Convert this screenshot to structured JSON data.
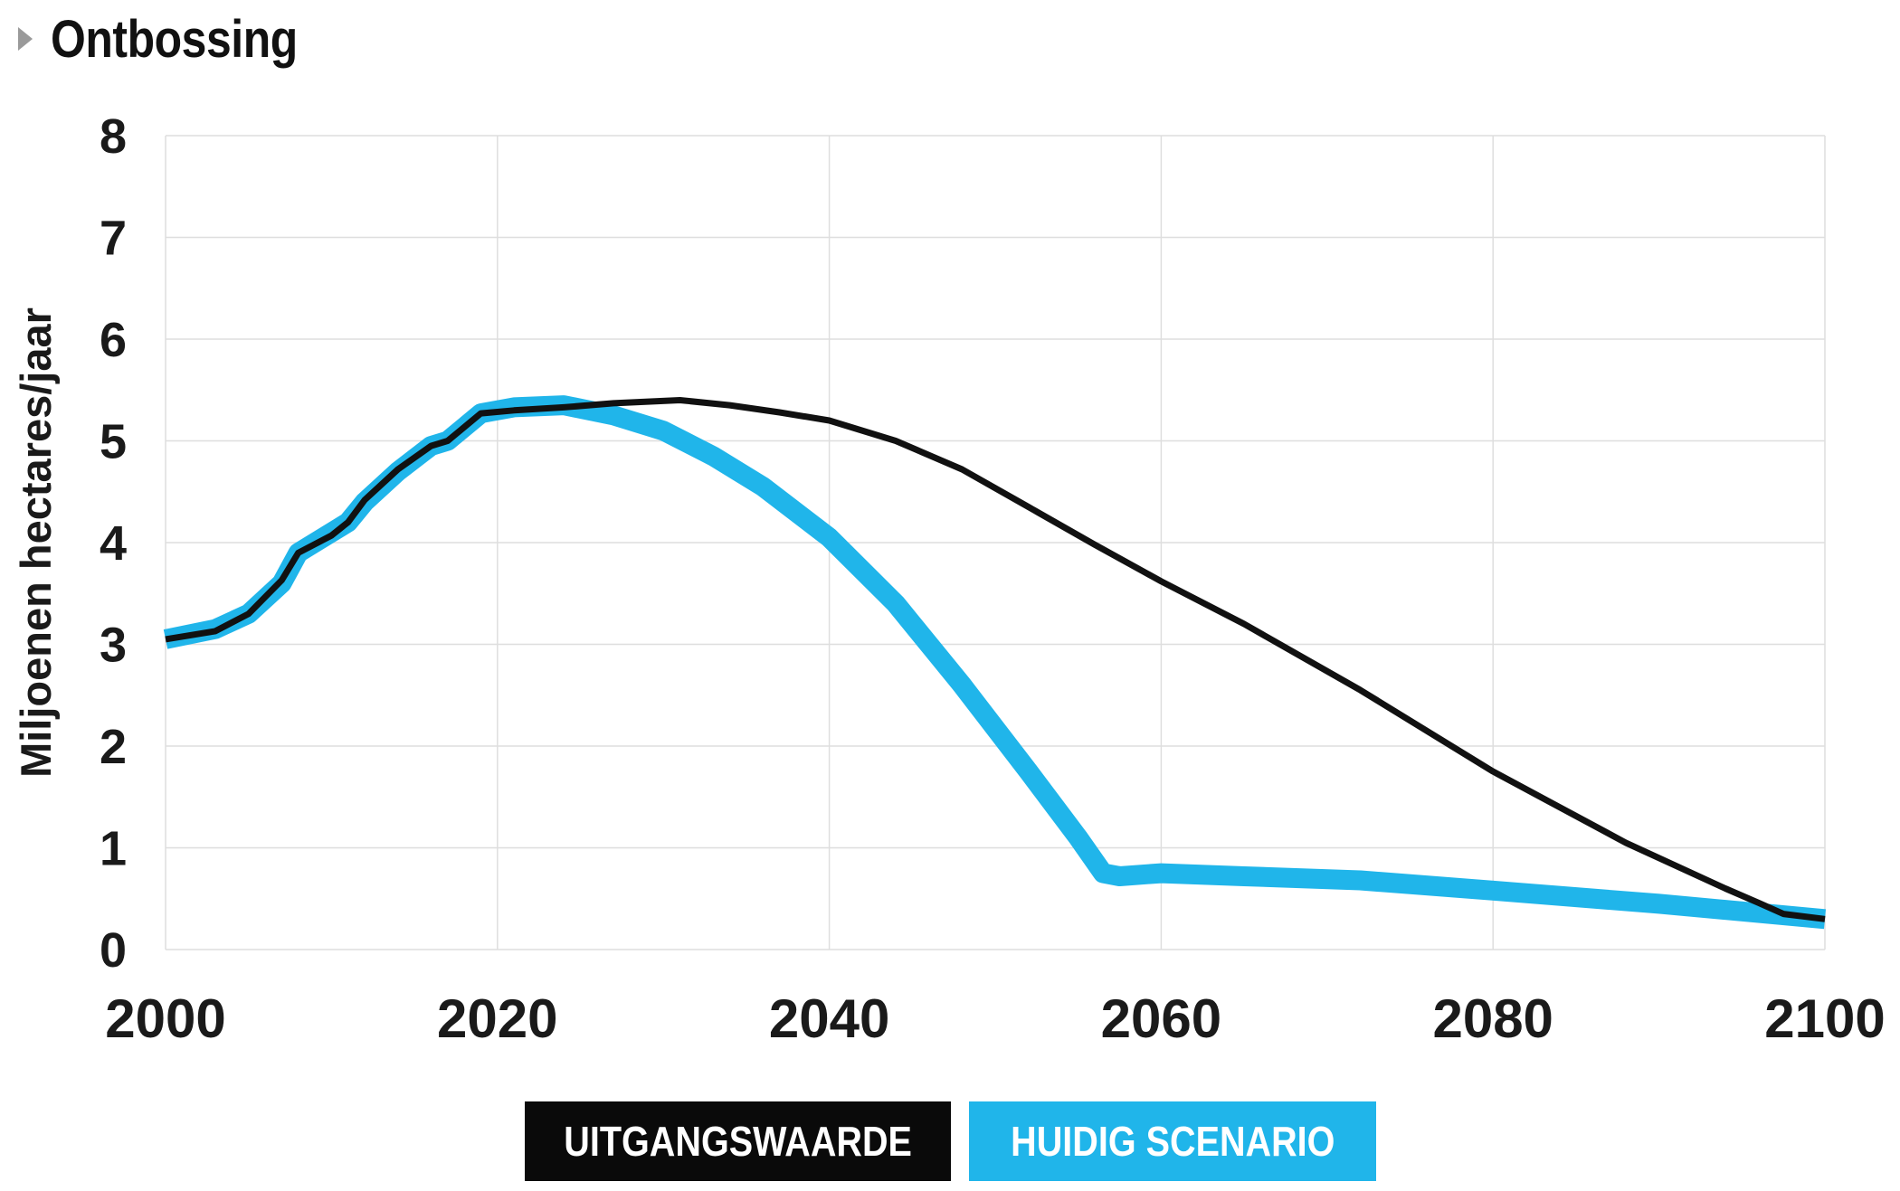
{
  "header": {
    "title": "Ontbossing",
    "expand_icon": "caret-right-icon"
  },
  "chart_data": {
    "type": "line",
    "title": "Ontbossing",
    "xlabel": "",
    "ylabel": "Miljoenen hectares/jaar",
    "xlim": [
      2000,
      2100
    ],
    "ylim": [
      0,
      8
    ],
    "xticks": [
      "2000",
      "2020",
      "2040",
      "2060",
      "2080",
      "2100"
    ],
    "yticks": [
      "0",
      "1",
      "2",
      "3",
      "4",
      "5",
      "6",
      "7",
      "8"
    ],
    "grid": true,
    "legend_position": "bottom-center",
    "series": [
      {
        "name": "HUIDIG SCENARIO",
        "color": "#20b5ea",
        "style": "thick",
        "x": [
          2000,
          2003,
          2005,
          2007,
          2008,
          2010,
          2011,
          2012,
          2014,
          2016,
          2017,
          2019,
          2021,
          2024,
          2027,
          2030,
          2033,
          2036,
          2040,
          2044,
          2048,
          2052,
          2055,
          2056.5,
          2057.5,
          2060,
          2065,
          2072,
          2080,
          2090,
          2100
        ],
        "y": [
          3.05,
          3.15,
          3.3,
          3.6,
          3.9,
          4.1,
          4.2,
          4.4,
          4.7,
          4.95,
          5.0,
          5.27,
          5.33,
          5.35,
          5.25,
          5.1,
          4.85,
          4.55,
          4.05,
          3.4,
          2.6,
          1.75,
          1.1,
          0.75,
          0.72,
          0.75,
          0.72,
          0.68,
          0.58,
          0.45,
          0.3
        ]
      },
      {
        "name": "UITGANGSWAARDE",
        "color": "#111111",
        "style": "thin",
        "x": [
          2000,
          2003,
          2005,
          2007,
          2008,
          2010,
          2011,
          2012,
          2014,
          2016,
          2017,
          2019,
          2021,
          2024,
          2027,
          2031,
          2034,
          2037,
          2040,
          2044,
          2048,
          2052,
          2056,
          2060,
          2065,
          2072,
          2080,
          2088,
          2094,
          2096,
          2097.5,
          2100
        ],
        "y": [
          3.05,
          3.13,
          3.3,
          3.63,
          3.9,
          4.07,
          4.2,
          4.42,
          4.72,
          4.95,
          5.0,
          5.27,
          5.3,
          5.33,
          5.37,
          5.4,
          5.35,
          5.28,
          5.2,
          5.0,
          4.72,
          4.35,
          3.98,
          3.62,
          3.2,
          2.55,
          1.75,
          1.05,
          0.6,
          0.46,
          0.35,
          0.3
        ]
      }
    ]
  },
  "legend": {
    "items": [
      {
        "label": "UITGANGSWAARDE",
        "bg": "#0a0a0a"
      },
      {
        "label": "HUIDIG SCENARIO",
        "bg": "#20b5ea"
      }
    ]
  }
}
